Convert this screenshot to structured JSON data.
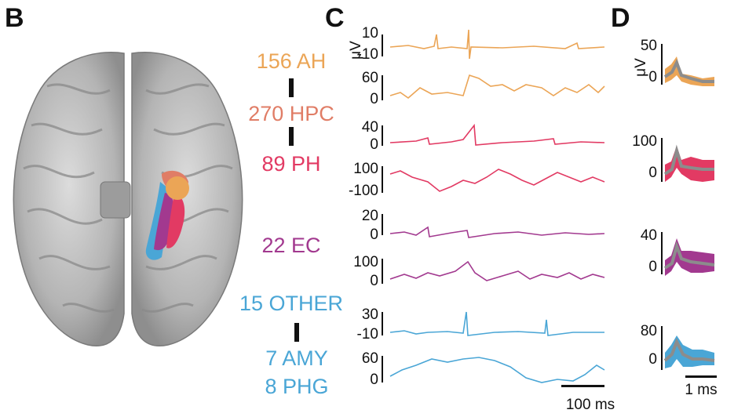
{
  "panels": {
    "b": "B",
    "c": "C",
    "d": "D"
  },
  "colors": {
    "ah": "#eba556",
    "hpc": "#e07d66",
    "ph": "#e23a63",
    "ec": "#a2398f",
    "other": "#4aa6d6",
    "mean": "#8c8c8c"
  },
  "regions": {
    "ah": "156 AH",
    "hpc": "270 HPC",
    "ph": "89 PH",
    "ec": "22 EC",
    "other": "15 OTHER",
    "amy": "7 AMY",
    "phg": "8 PHG"
  },
  "unit_c": "μV",
  "unit_d": "μV",
  "traces": [
    {
      "region": "AH",
      "band": "spikes",
      "ticks": [
        "10",
        "-10"
      ]
    },
    {
      "region": "AH",
      "band": "lfp",
      "ticks": [
        "60",
        "0"
      ]
    },
    {
      "region": "PH",
      "band": "spikes",
      "ticks": [
        "40",
        "0"
      ]
    },
    {
      "region": "PH",
      "band": "lfp",
      "ticks": [
        "100",
        "-100"
      ]
    },
    {
      "region": "EC",
      "band": "spikes",
      "ticks": [
        "20",
        "0"
      ]
    },
    {
      "region": "EC",
      "band": "lfp",
      "ticks": [
        "100",
        "0"
      ]
    },
    {
      "region": "OTHER",
      "band": "spikes",
      "ticks": [
        "30",
        "-10"
      ]
    },
    {
      "region": "OTHER",
      "band": "lfp",
      "ticks": [
        "60",
        "0"
      ]
    }
  ],
  "waveforms": [
    {
      "region": "AH",
      "ticks": [
        "50",
        "0"
      ]
    },
    {
      "region": "PH",
      "ticks": [
        "100",
        "0"
      ]
    },
    {
      "region": "EC",
      "ticks": [
        "40",
        "0"
      ]
    },
    {
      "region": "OTHER",
      "ticks": [
        "80",
        "0"
      ]
    }
  ],
  "scalebar_c": "100 ms",
  "scalebar_d": "1 ms"
}
